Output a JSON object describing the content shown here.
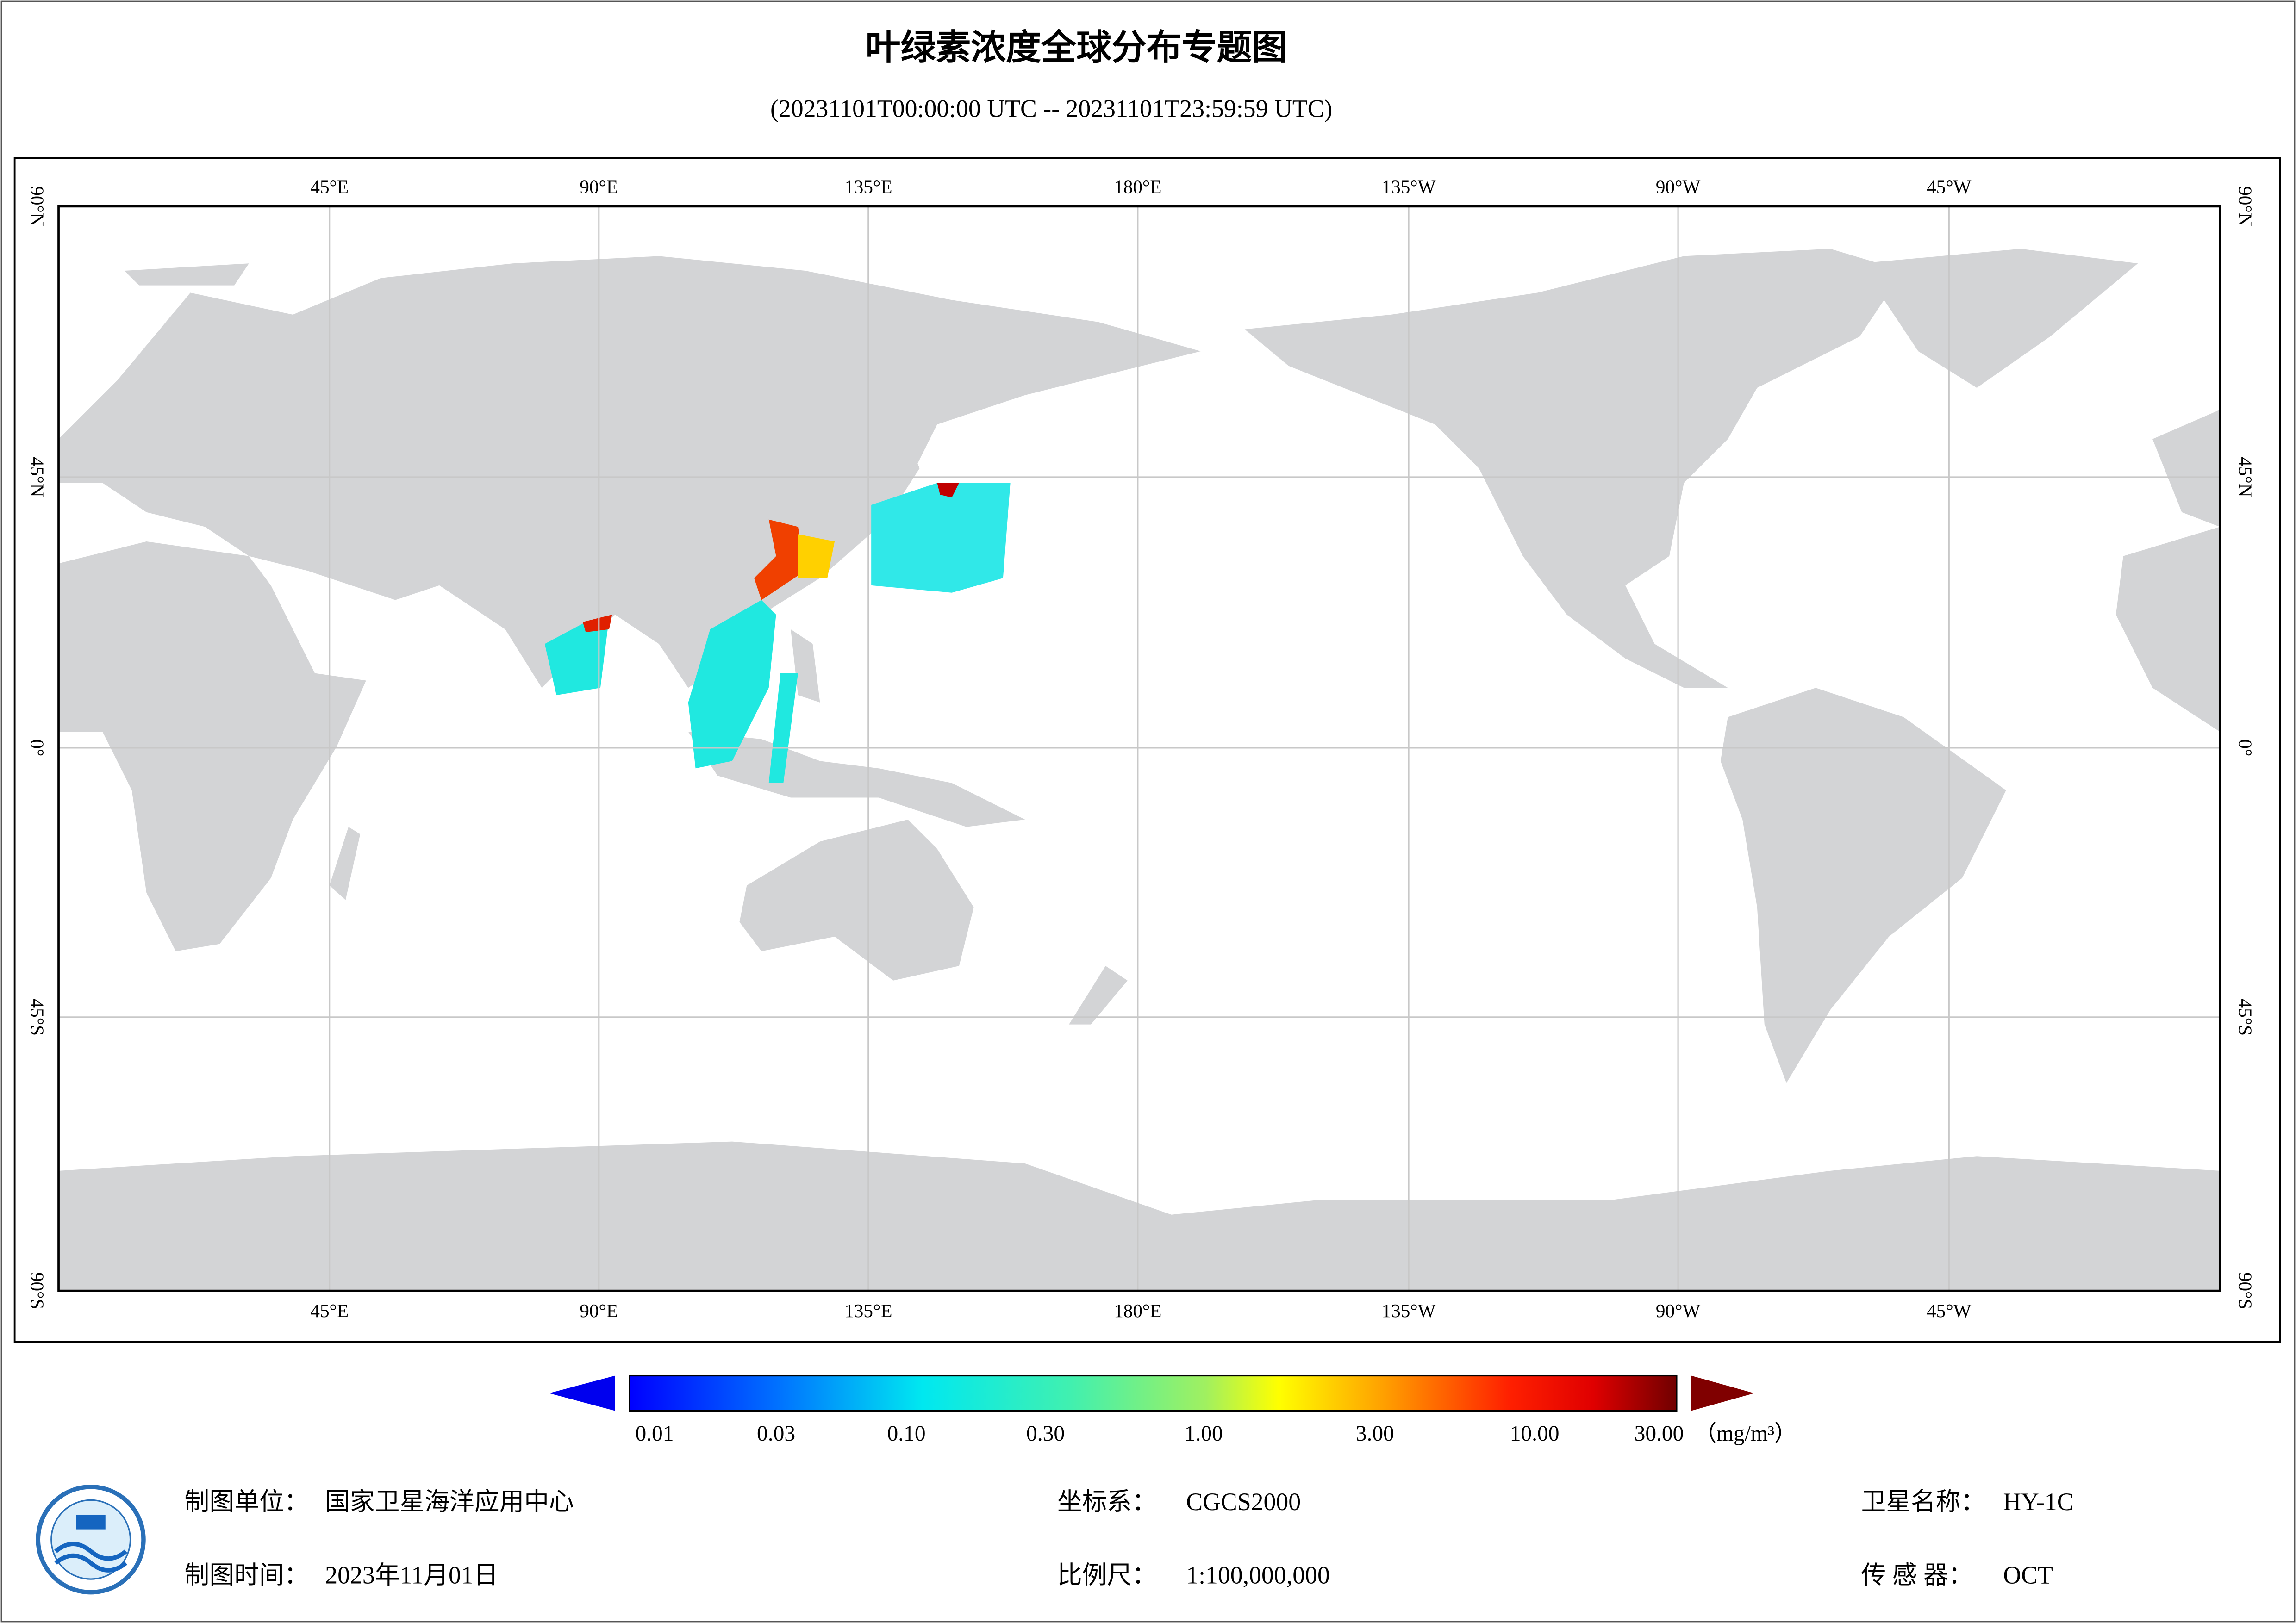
{
  "header": {
    "title": "叶绿素浓度全球分布专题图",
    "time_range": "(20231101T00:00:00 UTC -- 20231101T23:59:59 UTC)"
  },
  "map": {
    "lon_labels": [
      "45°E",
      "90°E",
      "135°E",
      "180°E",
      "135°W",
      "90°W",
      "45°W"
    ],
    "lat_labels": [
      "90°N",
      "45°N",
      "0°",
      "45°S",
      "90°S"
    ]
  },
  "colorbar": {
    "labels": [
      "0.01",
      "0.03",
      "0.10",
      "0.30",
      "1.00",
      "3.00",
      "10.00",
      "30.00"
    ],
    "unit": "（mg/m³）"
  },
  "footer": {
    "organization": {
      "label": "制图单位：",
      "value": "国家卫星海洋应用中心"
    },
    "date": {
      "label": "制图时间：",
      "value": "2023年11月01日"
    },
    "crs": {
      "label": "坐标系：",
      "value": "CGCS2000"
    },
    "scale": {
      "label": "比例尺：",
      "value": "1:100,000,000"
    },
    "satellite": {
      "label": "卫星名称：",
      "value": "HY-1C"
    },
    "sensor": {
      "label": "传 感 器：",
      "value": "OCT"
    }
  }
}
